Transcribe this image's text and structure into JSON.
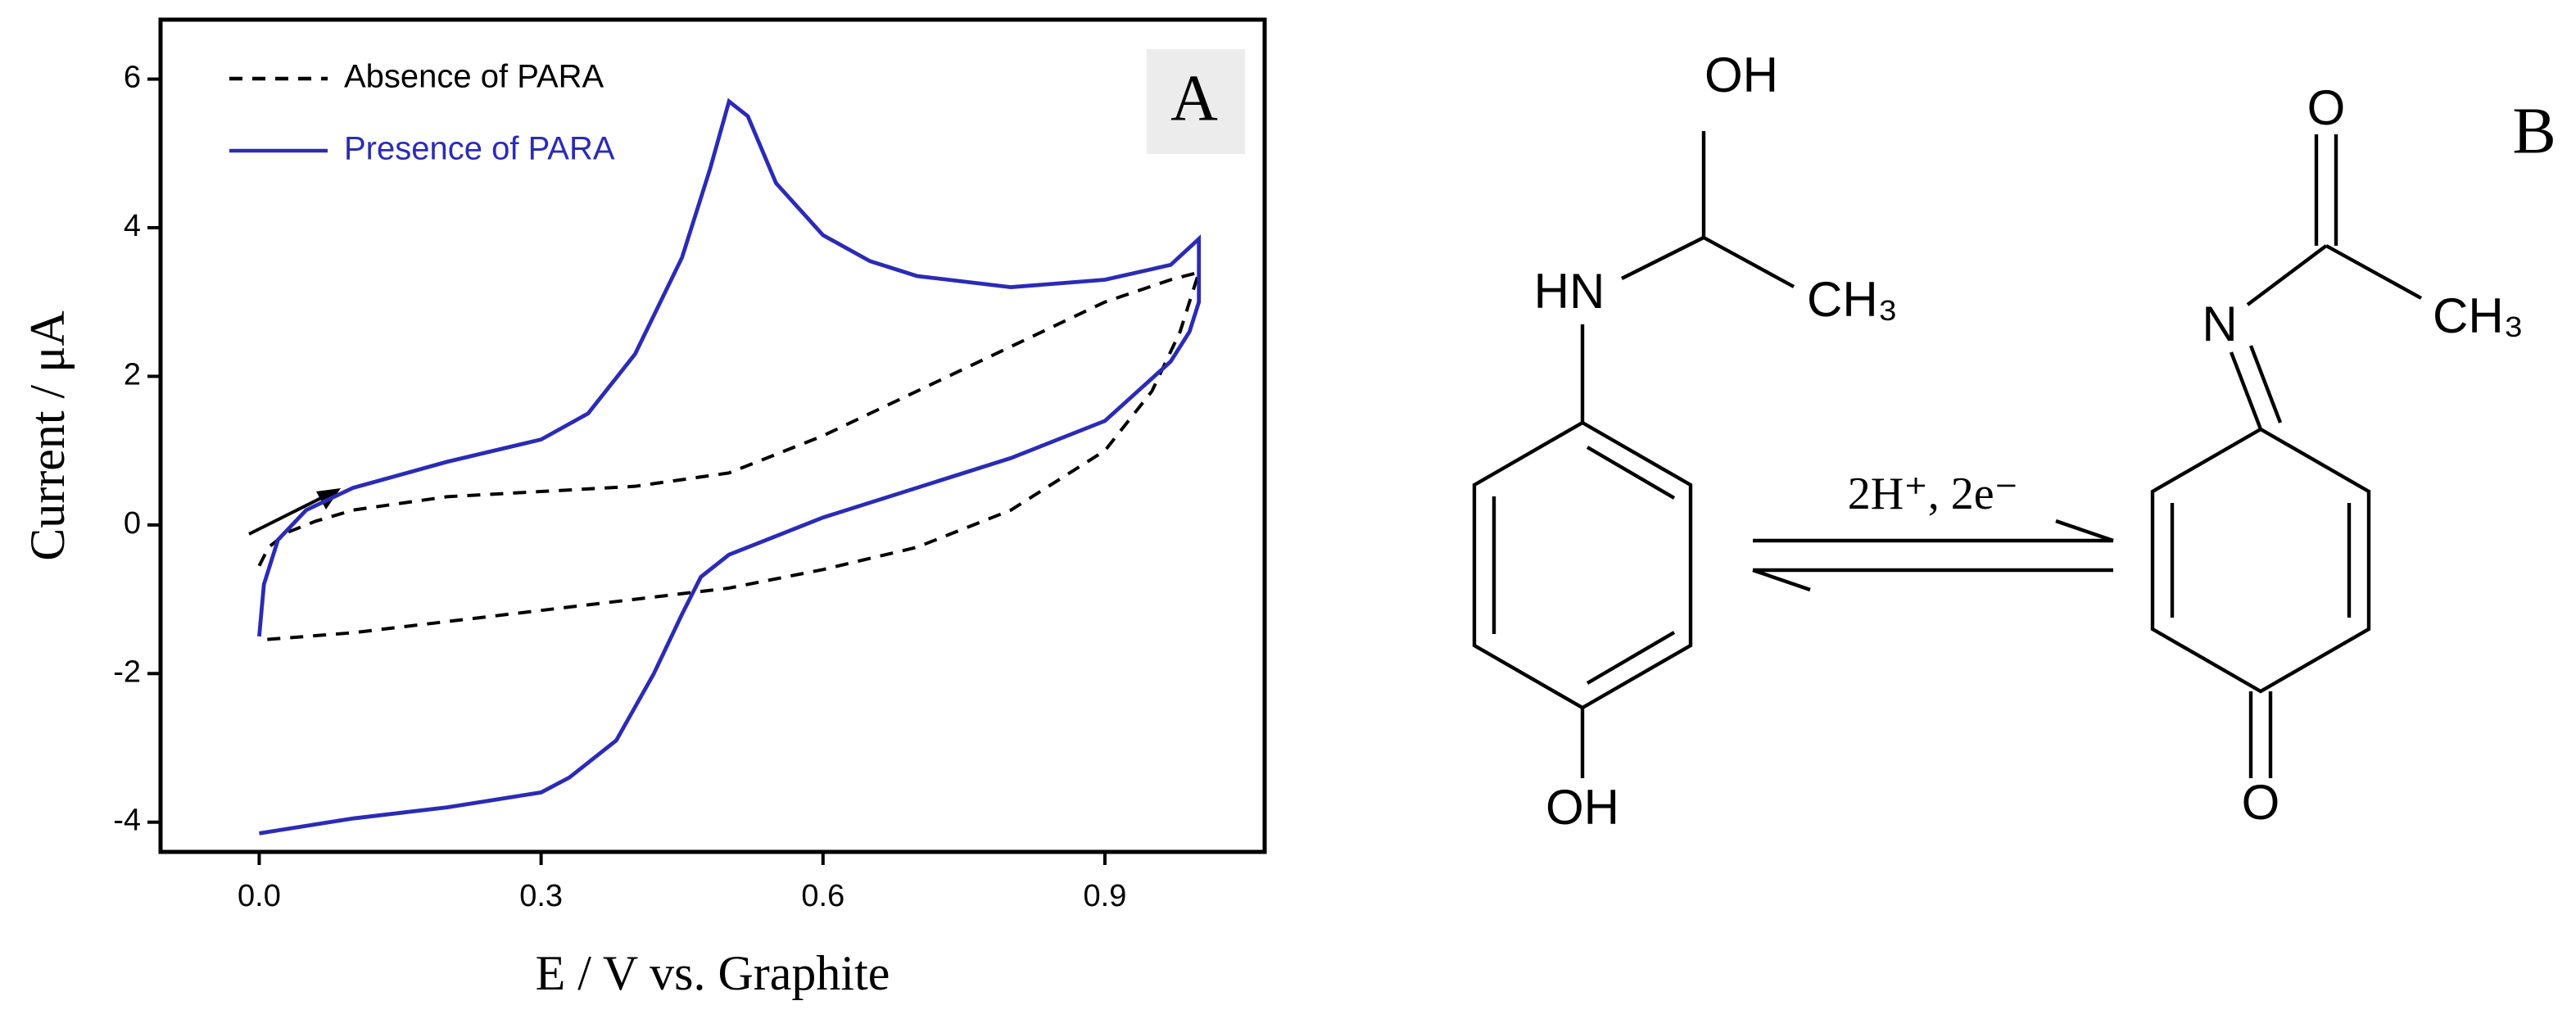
{
  "chart_data": {
    "type": "line",
    "x_label": "E / V vs. Graphite",
    "y_label": "Current / μA",
    "panel_label": "A",
    "xlim": [
      -0.105,
      1.07
    ],
    "ylim": [
      -4.4,
      6.8
    ],
    "xticks": [
      {
        "value": 0,
        "label": "0.0"
      },
      0.3,
      0.6,
      0.9
    ],
    "yticks": [
      -4,
      -2,
      0,
      2,
      4,
      6
    ],
    "legend": "top-left",
    "series": [
      {
        "name": "Absence of PARA",
        "color": "#000000",
        "dash": true,
        "x": [
          0.0,
          0.01,
          0.03,
          0.06,
          0.1,
          0.2,
          0.3,
          0.4,
          0.5,
          0.6,
          0.7,
          0.8,
          0.9,
          0.97,
          1.0,
          0.98,
          0.95,
          0.9,
          0.8,
          0.7,
          0.6,
          0.5,
          0.4,
          0.3,
          0.2,
          0.1,
          0.0
        ],
        "values": [
          -0.55,
          -0.3,
          -0.1,
          0.05,
          0.2,
          0.38,
          0.45,
          0.52,
          0.7,
          1.2,
          1.8,
          2.4,
          3.0,
          3.3,
          3.4,
          2.6,
          1.8,
          1.0,
          0.2,
          -0.3,
          -0.6,
          -0.85,
          -1.0,
          -1.15,
          -1.3,
          -1.45,
          -1.55
        ]
      },
      {
        "name": "Presence of PARA",
        "color": "#2b2bb5",
        "dash": false,
        "x": [
          0.0,
          0.005,
          0.02,
          0.05,
          0.1,
          0.2,
          0.3,
          0.35,
          0.4,
          0.45,
          0.48,
          0.5,
          0.52,
          0.55,
          0.6,
          0.65,
          0.7,
          0.8,
          0.9,
          0.97,
          1.0,
          1.0,
          0.99,
          0.97,
          0.9,
          0.8,
          0.7,
          0.6,
          0.55,
          0.5,
          0.47,
          0.45,
          0.42,
          0.38,
          0.33,
          0.3,
          0.2,
          0.1,
          0.0
        ],
        "values": [
          -1.5,
          -0.8,
          -0.2,
          0.2,
          0.5,
          0.85,
          1.15,
          1.5,
          2.3,
          3.6,
          4.8,
          5.7,
          5.5,
          4.6,
          3.9,
          3.55,
          3.35,
          3.2,
          3.3,
          3.5,
          3.85,
          3.0,
          2.6,
          2.2,
          1.4,
          0.9,
          0.5,
          0.1,
          -0.15,
          -0.4,
          -0.7,
          -1.2,
          -2.0,
          -2.9,
          -3.4,
          -3.6,
          -3.8,
          -3.95,
          -4.15
        ]
      }
    ]
  },
  "diagram": {
    "panel_label": "B",
    "reaction": "2H⁺, 2e⁻",
    "left": {
      "oh_top": "OH",
      "hn": "HN",
      "ch3": "CH₃",
      "oh_bottom": "OH"
    },
    "right": {
      "o_top": "O",
      "n": "N",
      "ch3": "CH₃",
      "o_bottom": "O"
    }
  }
}
